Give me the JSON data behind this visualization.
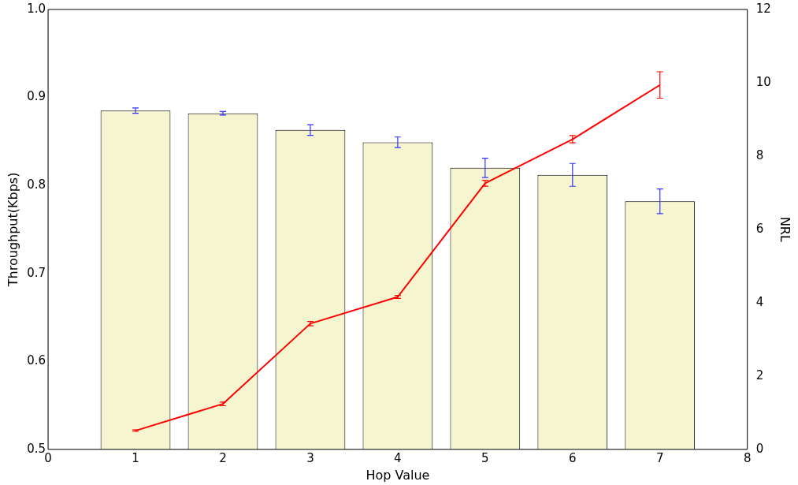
{
  "chart_data": {
    "type": "bar",
    "xlabel": "Hop Value",
    "ylabel": "Throughput(Kbps)",
    "y2label": "NRL",
    "x": [
      1,
      2,
      3,
      4,
      5,
      6,
      7
    ],
    "series": [
      {
        "color": "#f5f5d0",
        "values": [
          0.885,
          0.882,
          0.863,
          0.849,
          0.82,
          0.812,
          0.782
        ],
        "errors": [
          0.003,
          0.002,
          0.006,
          0.006,
          0.011,
          0.013,
          0.014
        ]
      },
      {
        "type": "line",
        "axis": "y2",
        "color": "#ff0000",
        "values": [
          0.51,
          1.24,
          3.43,
          4.16,
          7.26,
          8.46,
          9.94
        ],
        "errors": [
          0.02,
          0.05,
          0.06,
          0.04,
          0.08,
          0.1,
          0.36
        ]
      }
    ],
    "xlim": [
      0,
      8
    ],
    "xticks": [
      0,
      1,
      2,
      3,
      4,
      5,
      6,
      7,
      8
    ],
    "ylim": [
      0.5,
      1.0
    ],
    "yticks": [
      0.5,
      0.6,
      0.7,
      0.8,
      0.9,
      {
        "value": 1,
        "label": "1.0"
      }
    ],
    "y2lim": [
      0,
      12
    ],
    "y2ticks": [
      0,
      2,
      4,
      6,
      8,
      10,
      12
    ],
    "grid": false,
    "legend": false,
    "marker": "none"
  }
}
